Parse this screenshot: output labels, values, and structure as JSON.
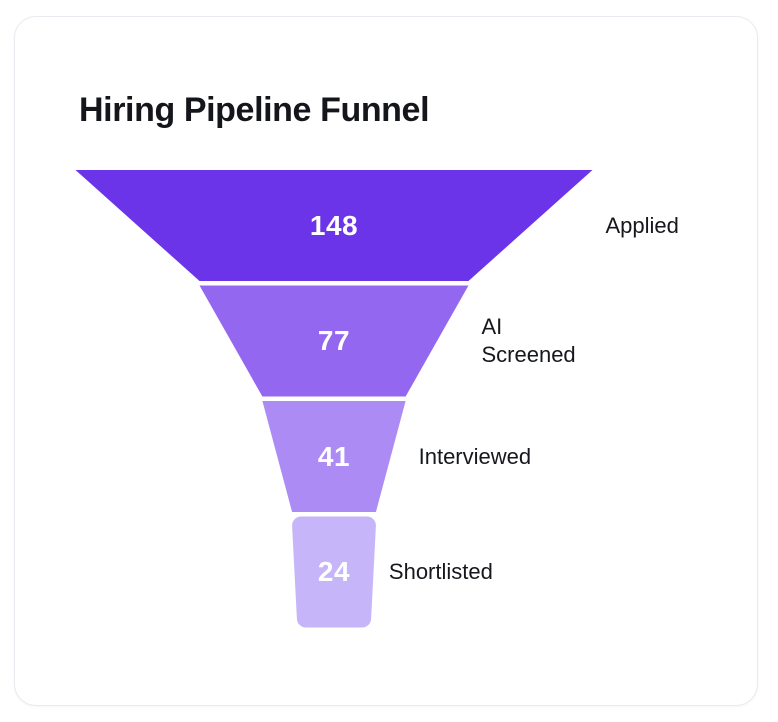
{
  "card": {
    "title": "Hiring Pipeline Funnel"
  },
  "colors": {
    "card_background": "#ffffff",
    "card_border": "#e9e9ef",
    "title_text": "#15161b",
    "stage_value_text": "#ffffff",
    "stage_label_text": "#16181d"
  },
  "chart_data": {
    "type": "funnel",
    "title": "Hiring Pipeline Funnel",
    "orientation": "vertical",
    "legend_position": "none",
    "grid": false,
    "max_value": 148,
    "stages": [
      {
        "label": "Applied",
        "value": 148,
        "color": "#6B34E9"
      },
      {
        "label": "AI Screened",
        "value": 77,
        "color": "#9467F0"
      },
      {
        "label": "Interviewed",
        "value": 41,
        "color": "#AC8CF4"
      },
      {
        "label": "Shortlisted",
        "value": 24,
        "color": "#C6B5F8"
      }
    ]
  }
}
